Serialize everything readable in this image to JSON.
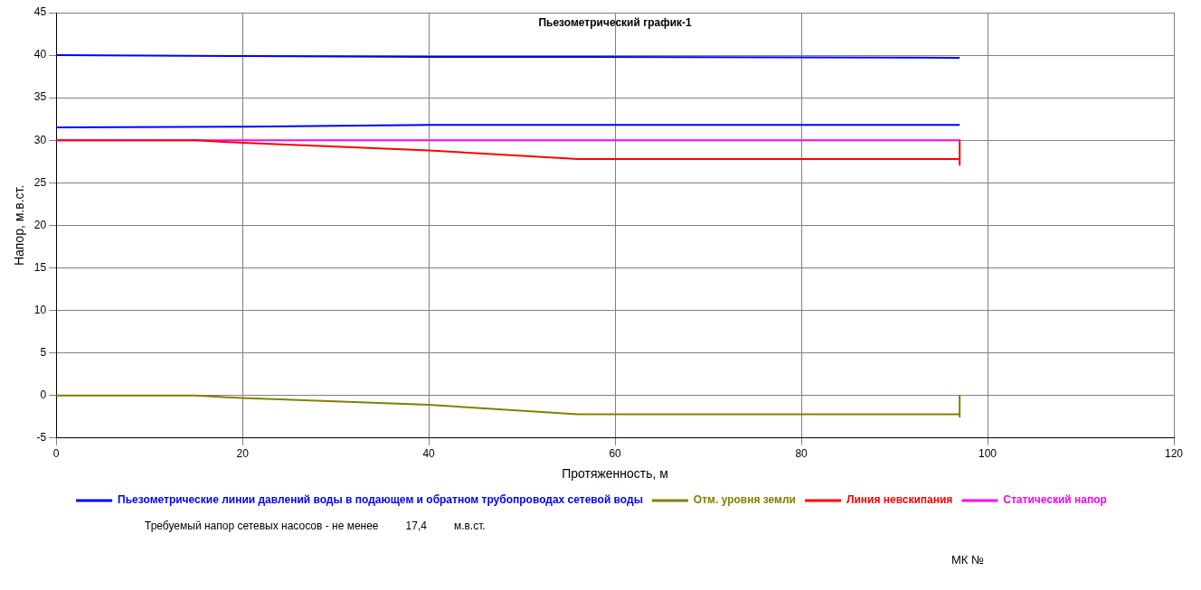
{
  "chart_data": {
    "type": "line",
    "title": "Пьезометрический график-1",
    "xlabel": "Протяженность, м",
    "ylabel": "Напор, м.в.ст.",
    "xlim": [
      0,
      120
    ],
    "xticks": [
      0,
      20,
      40,
      60,
      80,
      100,
      120
    ],
    "ylim": [
      -5,
      45
    ],
    "yticks": [
      -5,
      0,
      5,
      10,
      15,
      20,
      25,
      30,
      35,
      40,
      45
    ],
    "grid": true,
    "legend": "bottom",
    "marker": "none",
    "line_style": "solid",
    "series": [
      {
        "name": "Пьезометрические линии давлений воды в подающем и обратном трубопроводах сетевой воды",
        "color": "#0000ff",
        "x": [
          0,
          20,
          40,
          56,
          97
        ],
        "values": [
          40,
          39.9,
          39.8,
          39.8,
          39.7
        ]
      },
      {
        "color": "#0000ff",
        "x": [
          0,
          20,
          40,
          56,
          97
        ],
        "values": [
          31.5,
          31.6,
          31.8,
          31.8,
          31.8
        ]
      },
      {
        "name": "Отм. уровня земли",
        "color": "#808000",
        "x": [
          0,
          15,
          20,
          40,
          56,
          97,
          97,
          97
        ],
        "values": [
          0,
          0,
          -0.3,
          -1.1,
          -2.2,
          -2.2,
          0,
          -2.5
        ]
      },
      {
        "name": "Линия невскипания",
        "color": "#ff0000",
        "x": [
          0,
          15,
          20,
          40,
          56,
          97,
          97,
          97
        ],
        "values": [
          30,
          30,
          29.7,
          28.8,
          27.8,
          27.8,
          30,
          27.1
        ]
      },
      {
        "name": "Статический напор",
        "color": "#ff00ff",
        "x": [
          0,
          97
        ],
        "values": [
          30,
          30
        ]
      }
    ],
    "annotations": [
      "Требуемый напор сетевых насосов - не менее",
      "17,4",
      "м.в.ст.",
      "МК №"
    ]
  }
}
